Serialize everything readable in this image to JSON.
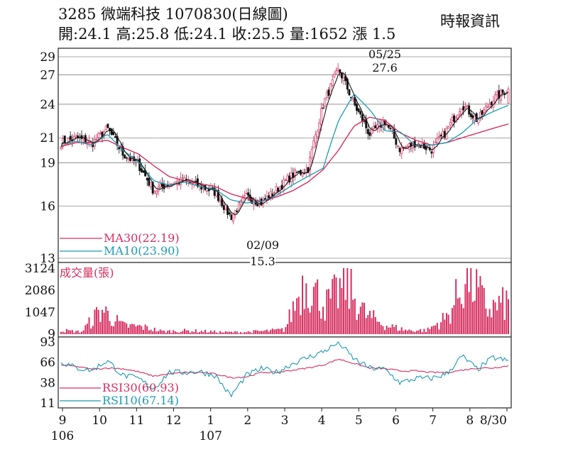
{
  "header": {
    "line1": "3285  微端科技 1070830(日線圖)",
    "line2": "開:24.1 高:25.8 低:24.1 收:25.5 量:1652 漲 1.5",
    "source": "時報資訊"
  },
  "colors": {
    "candle": "#d62f60",
    "ma30": "#d62f60",
    "ma10": "#1e9ab0",
    "ma_short": "#1a1a1a",
    "volume": "#d62f60",
    "rsi30": "#d62f60",
    "rsi10": "#1e9ab0",
    "grid": "#555555"
  },
  "chart_data": [
    {
      "type": "candlestick",
      "title": "",
      "ylim": [
        13,
        29
      ],
      "yscale": "log",
      "yticks": [
        13,
        16,
        19,
        21,
        24,
        27,
        29
      ],
      "legend": [
        {
          "name": "MA30(22.19)",
          "color": "#d62f60"
        },
        {
          "name": "MA10(23.90)",
          "color": "#1e9ab0"
        }
      ],
      "annotations": [
        {
          "date_label": "05/25",
          "value": "27.6"
        },
        {
          "date_label": "02/09",
          "value": "15.3"
        }
      ],
      "last_bar": {
        "open": 24.1,
        "high": 25.8,
        "low": 24.1,
        "close": 25.5
      },
      "close_path_points": [
        {
          "m": "106/9",
          "v": 20.6
        },
        {
          "m": "106/9.5",
          "v": 21.0
        },
        {
          "m": "106/10",
          "v": 20.5
        },
        {
          "m": "106/10.5",
          "v": 21.8
        },
        {
          "m": "106/11",
          "v": 19.7
        },
        {
          "m": "106/11.6",
          "v": 18.9
        },
        {
          "m": "106/12",
          "v": 17.0
        },
        {
          "m": "106/12.6",
          "v": 17.5
        },
        {
          "m": "107/1",
          "v": 17.7
        },
        {
          "m": "107/1.6",
          "v": 17.3
        },
        {
          "m": "107/2",
          "v": 16.9
        },
        {
          "m": "107/2.2",
          "v": 15.3
        },
        {
          "m": "107/3",
          "v": 16.6
        },
        {
          "m": "107/3.7",
          "v": 16.2
        },
        {
          "m": "107/4",
          "v": 17.1
        },
        {
          "m": "107/4.6",
          "v": 18.1
        },
        {
          "m": "107/5",
          "v": 18.5
        },
        {
          "m": "107/5.4",
          "v": 24.0
        },
        {
          "m": "107/5.8",
          "v": 27.6
        },
        {
          "m": "107/6",
          "v": 24.0
        },
        {
          "m": "107/6.4",
          "v": 21.3
        },
        {
          "m": "107/6.7",
          "v": 22.4
        },
        {
          "m": "107/7",
          "v": 20.0
        },
        {
          "m": "107/7.4",
          "v": 20.6
        },
        {
          "m": "107/7.8",
          "v": 20.0
        },
        {
          "m": "107/8",
          "v": 21.6
        },
        {
          "m": "107/8.3",
          "v": 24.0
        },
        {
          "m": "107/8.6",
          "v": 22.5
        },
        {
          "m": "107/8.9",
          "v": 24.5
        },
        {
          "m": "107/8/30",
          "v": 25.5
        }
      ],
      "ma30_points": [
        20.3,
        20.6,
        20.6,
        20.8,
        20.2,
        19.7,
        18.8,
        18.0,
        17.7,
        17.5,
        17.3,
        16.8,
        16.5,
        16.3,
        16.6,
        17.0,
        17.6,
        18.5,
        20.0,
        22.0,
        22.8,
        22.5,
        21.4,
        20.8,
        20.4,
        20.6,
        21.0,
        21.4,
        21.8,
        22.19
      ],
      "ma10_points": [
        20.5,
        20.7,
        20.4,
        21.3,
        20.0,
        19.1,
        17.7,
        17.4,
        17.6,
        17.3,
        17.1,
        16.4,
        16.2,
        16.3,
        16.7,
        17.4,
        18.0,
        18.6,
        22.5,
        25.0,
        23.5,
        21.6,
        21.5,
        20.3,
        20.4,
        20.6,
        21.4,
        22.6,
        23.3,
        23.9
      ]
    },
    {
      "type": "bar",
      "title": "成交量(張)",
      "yticks": [
        9,
        1047,
        2086,
        3124
      ],
      "ylim": [
        0,
        3124
      ],
      "profile": [
        {
          "m": "106/9",
          "v": 200
        },
        {
          "m": "106/9.8",
          "v": 120
        },
        {
          "m": "106/10",
          "v": 1300
        },
        {
          "m": "106/10.3",
          "v": 450
        },
        {
          "m": "106/10.8",
          "v": 380
        },
        {
          "m": "106/11",
          "v": 140
        },
        {
          "m": "106/12",
          "v": 180
        },
        {
          "m": "107/1",
          "v": 150
        },
        {
          "m": "107/2",
          "v": 100
        },
        {
          "m": "107/3",
          "v": 110
        },
        {
          "m": "107/4",
          "v": 160
        },
        {
          "m": "107/4.8",
          "v": 230
        },
        {
          "m": "107/5.4",
          "v": 2900
        },
        {
          "m": "107/5.6",
          "v": 1500
        },
        {
          "m": "107/5.8",
          "v": 2600
        },
        {
          "m": "107/6",
          "v": 1000
        },
        {
          "m": "107/6.3",
          "v": 450
        },
        {
          "m": "107/7",
          "v": 200
        },
        {
          "m": "107/8",
          "v": 200
        },
        {
          "m": "107/8.3",
          "v": 900
        },
        {
          "m": "107/8.6",
          "v": 3124
        },
        {
          "m": "107/8.8",
          "v": 1300
        },
        {
          "m": "107/8/30",
          "v": 1652
        }
      ]
    },
    {
      "type": "line",
      "title": "",
      "ylim": [
        11,
        93
      ],
      "yticks": [
        11,
        38,
        66,
        93
      ],
      "series": [
        {
          "name": "RSI30(60.93)",
          "color": "#d62f60",
          "values": [
            62,
            60,
            56,
            58,
            57,
            53,
            47,
            50,
            52,
            52,
            50,
            45,
            46,
            52,
            52,
            55,
            58,
            62,
            70,
            64,
            58,
            57,
            54,
            54,
            52,
            52,
            55,
            58,
            58,
            60.93
          ]
        },
        {
          "name": "RSI10(67.14)",
          "color": "#1e9ab0",
          "values": [
            66,
            58,
            55,
            68,
            48,
            44,
            30,
            52,
            52,
            53,
            48,
            20,
            48,
            57,
            52,
            64,
            72,
            80,
            92,
            70,
            58,
            56,
            38,
            44,
            44,
            50,
            74,
            56,
            72,
            67.14
          ]
        }
      ]
    }
  ],
  "x_axis": {
    "months": [
      {
        "label": "9",
        "year": "106"
      },
      {
        "label": "10",
        "year": ""
      },
      {
        "label": "11",
        "year": ""
      },
      {
        "label": "12",
        "year": ""
      },
      {
        "label": "1",
        "year": "107"
      },
      {
        "label": "2",
        "year": ""
      },
      {
        "label": "3",
        "year": ""
      },
      {
        "label": "4",
        "year": ""
      },
      {
        "label": "5",
        "year": ""
      },
      {
        "label": "6",
        "year": ""
      },
      {
        "label": "7",
        "year": ""
      },
      {
        "label": "8",
        "year": ""
      },
      {
        "label": "8/30",
        "year": ""
      }
    ]
  }
}
